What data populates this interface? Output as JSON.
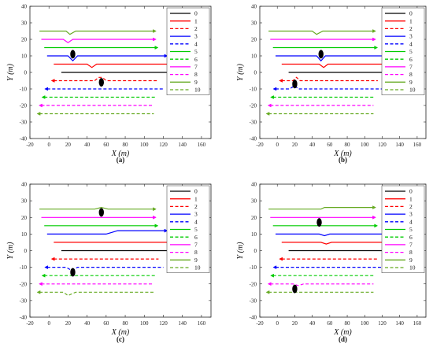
{
  "chart_data": [
    {
      "type": "line",
      "caption": "(a)",
      "xlabel": "X (m)",
      "ylabel": "Y (m)",
      "xlim": [
        -20,
        170
      ],
      "ylim": [
        -40,
        40
      ],
      "xticks": [
        -20,
        0,
        20,
        40,
        60,
        80,
        100,
        120,
        140,
        160
      ],
      "yticks": [
        -40,
        -30,
        -20,
        -10,
        0,
        10,
        20,
        30,
        40
      ],
      "grid": false,
      "legend": "right",
      "series": [
        {
          "name": "0",
          "color": "#000000",
          "dash": false,
          "arrow_x": 135,
          "x": [
            13,
            135
          ],
          "y": [
            0,
            0
          ]
        },
        {
          "name": "1",
          "color": "#ff0000",
          "dash": false,
          "arrow_x": 127,
          "x": [
            5,
            40,
            45,
            50,
            127
          ],
          "y": [
            5,
            5,
            3,
            5,
            5
          ]
        },
        {
          "name": "2",
          "color": "#ff0000",
          "dash": true,
          "arrow_x": 5,
          "x": [
            5,
            48,
            52,
            56,
            60,
            115
          ],
          "y": [
            -5,
            -5,
            -3,
            -3,
            -5,
            -5
          ]
        },
        {
          "name": "3",
          "color": "#0000ff",
          "dash": false,
          "arrow_x": 122,
          "x": [
            -2,
            20,
            25,
            30,
            122
          ],
          "y": [
            10,
            10,
            7,
            10,
            10
          ]
        },
        {
          "name": "4",
          "color": "#0000ff",
          "dash": true,
          "arrow_x": -2,
          "x": [
            -2,
            120
          ],
          "y": [
            -10,
            -10
          ]
        },
        {
          "name": "5",
          "color": "#00cc00",
          "dash": false,
          "arrow_x": 112,
          "x": [
            -5,
            112
          ],
          "y": [
            15,
            15
          ]
        },
        {
          "name": "6",
          "color": "#00cc00",
          "dash": true,
          "arrow_x": -5,
          "x": [
            -5,
            112
          ],
          "y": [
            -15,
            -15
          ]
        },
        {
          "name": "7",
          "color": "#ff00ff",
          "dash": false,
          "arrow_x": 110,
          "x": [
            -8,
            15,
            20,
            25,
            110
          ],
          "y": [
            20,
            20,
            18,
            20,
            20
          ]
        },
        {
          "name": "8",
          "color": "#ff00ff",
          "dash": true,
          "arrow_x": -8,
          "x": [
            -8,
            110
          ],
          "y": [
            -20,
            -20
          ]
        },
        {
          "name": "9",
          "color": "#66aa22",
          "dash": false,
          "arrow_x": 110,
          "x": [
            -10,
            18,
            22,
            28,
            110
          ],
          "y": [
            25,
            25,
            23,
            25,
            25
          ]
        },
        {
          "name": "10",
          "color": "#66aa22",
          "dash": true,
          "arrow_x": -10,
          "x": [
            -10,
            110
          ],
          "y": [
            -25,
            -25
          ]
        }
      ],
      "markers": [
        {
          "x": 25,
          "y": 11
        },
        {
          "x": 55,
          "y": -6
        }
      ]
    },
    {
      "type": "line",
      "caption": "(b)",
      "xlabel": "X (m)",
      "ylabel": "Y (m)",
      "xlim": [
        -20,
        170
      ],
      "ylim": [
        -40,
        40
      ],
      "xticks": [
        -20,
        0,
        20,
        40,
        60,
        80,
        100,
        120,
        140,
        160
      ],
      "yticks": [
        -40,
        -30,
        -20,
        -10,
        0,
        10,
        20,
        30,
        40
      ],
      "grid": false,
      "legend": "right",
      "series": [
        {
          "name": "0",
          "color": "#000000",
          "dash": false,
          "arrow_x": 135,
          "x": [
            13,
            135
          ],
          "y": [
            0,
            0
          ]
        },
        {
          "name": "1",
          "color": "#ff0000",
          "dash": false,
          "arrow_x": 127,
          "x": [
            5,
            48,
            53,
            58,
            127
          ],
          "y": [
            5,
            5,
            3,
            5,
            5
          ]
        },
        {
          "name": "2",
          "color": "#ff0000",
          "dash": true,
          "arrow_x": 5,
          "x": [
            5,
            18,
            22,
            26,
            115
          ],
          "y": [
            -5,
            -5,
            -3,
            -5,
            -5
          ]
        },
        {
          "name": "3",
          "color": "#0000ff",
          "dash": false,
          "arrow_x": 122,
          "x": [
            -2,
            45,
            50,
            55,
            122
          ],
          "y": [
            10,
            10,
            7,
            10,
            10
          ]
        },
        {
          "name": "4",
          "color": "#0000ff",
          "dash": true,
          "arrow_x": -2,
          "x": [
            -2,
            14,
            20,
            24,
            120
          ],
          "y": [
            -10,
            -10,
            -8,
            -10,
            -10
          ]
        },
        {
          "name": "5",
          "color": "#00cc00",
          "dash": false,
          "arrow_x": 112,
          "x": [
            -5,
            112
          ],
          "y": [
            15,
            15
          ]
        },
        {
          "name": "6",
          "color": "#00cc00",
          "dash": true,
          "arrow_x": -5,
          "x": [
            -5,
            112
          ],
          "y": [
            -15,
            -15
          ]
        },
        {
          "name": "7",
          "color": "#ff00ff",
          "dash": false,
          "arrow_x": 110,
          "x": [
            -8,
            110
          ],
          "y": [
            20,
            20
          ]
        },
        {
          "name": "8",
          "color": "#ff00ff",
          "dash": true,
          "arrow_x": -8,
          "x": [
            -8,
            110
          ],
          "y": [
            -20,
            -20
          ]
        },
        {
          "name": "9",
          "color": "#66aa22",
          "dash": false,
          "arrow_x": 110,
          "x": [
            -10,
            40,
            45,
            52,
            110
          ],
          "y": [
            25,
            25,
            23,
            25,
            25
          ]
        },
        {
          "name": "10",
          "color": "#66aa22",
          "dash": true,
          "arrow_x": -10,
          "x": [
            -10,
            110
          ],
          "y": [
            -25,
            -25
          ]
        }
      ],
      "markers": [
        {
          "x": 50,
          "y": 11
        },
        {
          "x": 20,
          "y": -7
        }
      ]
    },
    {
      "type": "line",
      "caption": "(c)",
      "xlabel": "X (m)",
      "ylabel": "Y (m)",
      "xlim": [
        -20,
        170
      ],
      "ylim": [
        -40,
        40
      ],
      "xticks": [
        -20,
        0,
        20,
        40,
        60,
        80,
        100,
        120,
        140,
        160
      ],
      "yticks": [
        -40,
        -30,
        -20,
        -10,
        0,
        10,
        20,
        30,
        40
      ],
      "grid": false,
      "legend": "right",
      "series": [
        {
          "name": "0",
          "color": "#000000",
          "dash": false,
          "arrow_x": 135,
          "x": [
            13,
            135
          ],
          "y": [
            0,
            0
          ]
        },
        {
          "name": "1",
          "color": "#ff0000",
          "dash": false,
          "arrow_x": 127,
          "x": [
            5,
            127
          ],
          "y": [
            5,
            5
          ]
        },
        {
          "name": "2",
          "color": "#ff0000",
          "dash": true,
          "arrow_x": 5,
          "x": [
            5,
            115
          ],
          "y": [
            -5,
            -5
          ]
        },
        {
          "name": "3",
          "color": "#0000ff",
          "dash": false,
          "arrow_x": 122,
          "x": [
            -2,
            60,
            66,
            72,
            122
          ],
          "y": [
            10,
            10,
            11,
            12,
            12
          ]
        },
        {
          "name": "4",
          "color": "#0000ff",
          "dash": true,
          "arrow_x": -2,
          "x": [
            -2,
            18,
            24,
            30,
            120
          ],
          "y": [
            -10,
            -10,
            -12,
            -10,
            -10
          ]
        },
        {
          "name": "5",
          "color": "#00cc00",
          "dash": false,
          "arrow_x": 112,
          "x": [
            -5,
            112
          ],
          "y": [
            15,
            15
          ]
        },
        {
          "name": "6",
          "color": "#00cc00",
          "dash": true,
          "arrow_x": -5,
          "x": [
            -5,
            112
          ],
          "y": [
            -15,
            -15
          ]
        },
        {
          "name": "7",
          "color": "#ff00ff",
          "dash": false,
          "arrow_x": 110,
          "x": [
            -8,
            110
          ],
          "y": [
            20,
            20
          ]
        },
        {
          "name": "8",
          "color": "#ff00ff",
          "dash": true,
          "arrow_x": -8,
          "x": [
            -8,
            110
          ],
          "y": [
            -20,
            -20
          ]
        },
        {
          "name": "9",
          "color": "#66aa22",
          "dash": false,
          "arrow_x": 110,
          "x": [
            -10,
            48,
            55,
            62,
            110
          ],
          "y": [
            25,
            25,
            26,
            25,
            25
          ]
        },
        {
          "name": "10",
          "color": "#66aa22",
          "dash": true,
          "arrow_x": -10,
          "x": [
            -10,
            15,
            20,
            28,
            110
          ],
          "y": [
            -25,
            -25,
            -27,
            -25,
            -25
          ]
        }
      ],
      "markers": [
        {
          "x": 55,
          "y": 23
        },
        {
          "x": 25,
          "y": -13
        }
      ]
    },
    {
      "type": "line",
      "caption": "(d)",
      "xlabel": "X (m)",
      "ylabel": "Y (m)",
      "xlim": [
        -20,
        170
      ],
      "ylim": [
        -40,
        40
      ],
      "xticks": [
        -20,
        0,
        20,
        40,
        60,
        80,
        100,
        120,
        140,
        160
      ],
      "yticks": [
        -40,
        -30,
        -20,
        -10,
        0,
        10,
        20,
        30,
        40
      ],
      "grid": false,
      "legend": "right",
      "series": [
        {
          "name": "0",
          "color": "#000000",
          "dash": false,
          "arrow_x": 135,
          "x": [
            13,
            135
          ],
          "y": [
            0,
            0
          ]
        },
        {
          "name": "1",
          "color": "#ff0000",
          "dash": false,
          "arrow_x": 127,
          "x": [
            5,
            50,
            56,
            62,
            127
          ],
          "y": [
            5,
            5,
            4,
            5,
            5
          ]
        },
        {
          "name": "2",
          "color": "#ff0000",
          "dash": true,
          "arrow_x": 5,
          "x": [
            5,
            115
          ],
          "y": [
            -5,
            -5
          ]
        },
        {
          "name": "3",
          "color": "#0000ff",
          "dash": false,
          "arrow_x": 122,
          "x": [
            -2,
            48,
            54,
            60,
            122
          ],
          "y": [
            10,
            10,
            9,
            10,
            10
          ]
        },
        {
          "name": "4",
          "color": "#0000ff",
          "dash": true,
          "arrow_x": -2,
          "x": [
            -2,
            120
          ],
          "y": [
            -10,
            -10
          ]
        },
        {
          "name": "5",
          "color": "#00cc00",
          "dash": false,
          "arrow_x": 112,
          "x": [
            -5,
            112
          ],
          "y": [
            15,
            15
          ]
        },
        {
          "name": "6",
          "color": "#00cc00",
          "dash": true,
          "arrow_x": -5,
          "x": [
            -5,
            112
          ],
          "y": [
            -15,
            -15
          ]
        },
        {
          "name": "7",
          "color": "#ff00ff",
          "dash": false,
          "arrow_x": 110,
          "x": [
            -8,
            110
          ],
          "y": [
            20,
            20
          ]
        },
        {
          "name": "8",
          "color": "#ff00ff",
          "dash": true,
          "arrow_x": -8,
          "x": [
            -8,
            18,
            24,
            30,
            110
          ],
          "y": [
            -20,
            -20,
            -21,
            -20,
            -20
          ]
        },
        {
          "name": "9",
          "color": "#66aa22",
          "dash": false,
          "arrow_x": 110,
          "x": [
            -10,
            50,
            54,
            58,
            110
          ],
          "y": [
            25,
            25,
            26,
            26,
            26
          ]
        },
        {
          "name": "10",
          "color": "#66aa22",
          "dash": true,
          "arrow_x": -10,
          "x": [
            -10,
            110
          ],
          "y": [
            -25,
            -25
          ]
        }
      ],
      "markers": [
        {
          "x": 48,
          "y": 17
        },
        {
          "x": 20,
          "y": -23
        }
      ]
    }
  ]
}
